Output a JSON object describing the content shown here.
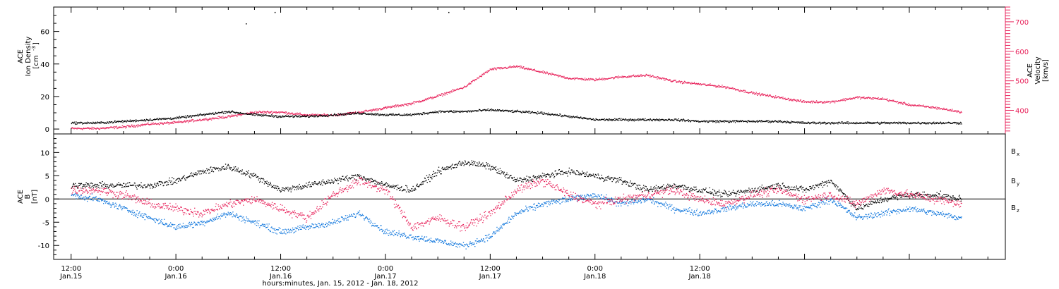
{
  "colors": {
    "black": "#000000",
    "blue": "#1177dd",
    "pink": "#e8245c"
  },
  "chart_data": [
    {
      "type": "scatter",
      "panel": "top",
      "ylabel_left": [
        "ACE",
        "Ion Density",
        "[cm",
        "-3",
        "]"
      ],
      "ylabel_right": [
        "ACE",
        "Velocity",
        "[km/s]"
      ],
      "y_left_ticks": [
        "0",
        "20",
        "40",
        "60"
      ],
      "y_left_range": [
        -3,
        75
      ],
      "y_right_ticks": [
        "400",
        "500",
        "600",
        "700"
      ],
      "y_right_range": [
        320,
        750
      ],
      "series": [
        {
          "label": "density",
          "axis": "left",
          "color": "black",
          "x": [
            0,
            3,
            6,
            9,
            12,
            15,
            18,
            21,
            24,
            27,
            30,
            33,
            36,
            39,
            42,
            45,
            48,
            51,
            54,
            57,
            60,
            63,
            66,
            69,
            72,
            75,
            78,
            81,
            84,
            87,
            90,
            93,
            96,
            99,
            102
          ],
          "y": [
            4,
            4,
            5,
            6,
            7,
            9,
            11,
            9,
            8,
            8,
            9,
            10,
            9,
            9,
            11,
            11,
            12,
            11,
            10,
            8,
            6,
            6,
            6,
            6,
            5,
            5,
            5,
            5,
            4,
            4,
            4,
            4,
            4,
            4,
            4
          ]
        },
        {
          "label": "velocity",
          "axis": "right",
          "color": "pink",
          "x": [
            0,
            3,
            6,
            9,
            12,
            15,
            18,
            21,
            24,
            27,
            30,
            33,
            36,
            39,
            42,
            45,
            48,
            51,
            54,
            57,
            60,
            63,
            66,
            69,
            72,
            75,
            78,
            81,
            84,
            87,
            90,
            93,
            96,
            99,
            102
          ],
          "y": [
            340,
            340,
            345,
            355,
            360,
            370,
            380,
            395,
            395,
            385,
            385,
            395,
            410,
            425,
            450,
            480,
            540,
            550,
            530,
            510,
            505,
            515,
            520,
            500,
            490,
            480,
            460,
            445,
            430,
            430,
            445,
            440,
            420,
            410,
            395
          ]
        }
      ],
      "outliers": [
        {
          "x": 20.0,
          "y": 65
        },
        {
          "x": 23.3,
          "y": 72
        },
        {
          "x": 43.2,
          "y": 72
        }
      ]
    },
    {
      "type": "scatter",
      "panel": "bottom",
      "ylabel_left": [
        "ACE",
        "B",
        "[nT]"
      ],
      "y_left_ticks": [
        "-10",
        "-5",
        "0",
        "5",
        "10"
      ],
      "y_left_range": [
        -13,
        14
      ],
      "legend": [
        {
          "main": "B",
          "sub": "x",
          "color": "black"
        },
        {
          "main": "B",
          "sub": "y",
          "color": "blue"
        },
        {
          "main": "B",
          "sub": "z",
          "color": "pink"
        }
      ],
      "series": [
        {
          "label": "Bx",
          "color": "black",
          "x": [
            0,
            3,
            6,
            9,
            12,
            15,
            18,
            21,
            24,
            27,
            30,
            33,
            36,
            39,
            42,
            45,
            48,
            51,
            54,
            57,
            60,
            63,
            66,
            69,
            72,
            75,
            78,
            81,
            84,
            87,
            90,
            93,
            96,
            99,
            102
          ],
          "y": [
            3,
            3,
            3,
            3,
            4,
            6,
            7,
            5,
            2,
            3,
            4,
            5,
            3,
            2,
            6,
            8,
            7,
            4,
            5,
            6,
            5,
            4,
            2,
            3,
            2,
            1,
            2,
            3,
            2,
            4,
            -2,
            0,
            1,
            1,
            0
          ]
        },
        {
          "label": "By",
          "color": "blue",
          "x": [
            0,
            3,
            6,
            9,
            12,
            15,
            18,
            21,
            24,
            27,
            30,
            33,
            36,
            39,
            42,
            45,
            48,
            51,
            54,
            57,
            60,
            63,
            66,
            69,
            72,
            75,
            78,
            81,
            84,
            87,
            90,
            93,
            96,
            99,
            102
          ],
          "y": [
            1,
            0,
            -2,
            -4,
            -6,
            -5,
            -3,
            -5,
            -7,
            -6,
            -5,
            -3,
            -7,
            -8,
            -9,
            -10,
            -8,
            -3,
            -1,
            0,
            1,
            -1,
            0,
            -2,
            -3,
            -2,
            -1,
            -1,
            -2,
            0,
            -4,
            -3,
            -2,
            -3,
            -4
          ]
        },
        {
          "label": "Bz",
          "color": "pink",
          "x": [
            0,
            3,
            6,
            9,
            12,
            15,
            18,
            21,
            24,
            27,
            30,
            33,
            36,
            39,
            42,
            45,
            48,
            51,
            54,
            57,
            60,
            63,
            66,
            69,
            72,
            75,
            78,
            81,
            84,
            87,
            90,
            93,
            96,
            99,
            102
          ],
          "y": [
            2,
            2,
            1,
            -1,
            -2,
            -3,
            -1,
            0,
            -2,
            -4,
            1,
            4,
            2,
            -6,
            -4,
            -6,
            -3,
            2,
            4,
            1,
            -1,
            0,
            1,
            2,
            0,
            -1,
            1,
            2,
            0,
            1,
            -1,
            2,
            1,
            0,
            -1
          ]
        }
      ]
    }
  ],
  "x_axis": {
    "range_hours": [
      -2,
      107
    ],
    "ticks": [
      {
        "h": 0,
        "time": "12:00",
        "date": "Jan.15"
      },
      {
        "h": 12,
        "time": "0:00",
        "date": "Jan.16"
      },
      {
        "h": 24,
        "time": "12:00",
        "date": "Jan.16"
      },
      {
        "h": 36,
        "time": "0:00",
        "date": "Jan.17"
      },
      {
        "h": 48,
        "time": "12:00",
        "date": "Jan.17"
      },
      {
        "h": 60,
        "time": "0:00",
        "date": "Jan.18"
      },
      {
        "h": 72,
        "time": "12:00",
        "date": "Jan.18"
      }
    ],
    "title": "hours:minutes, Jan. 15, 2012 - Jan. 18, 2012"
  }
}
